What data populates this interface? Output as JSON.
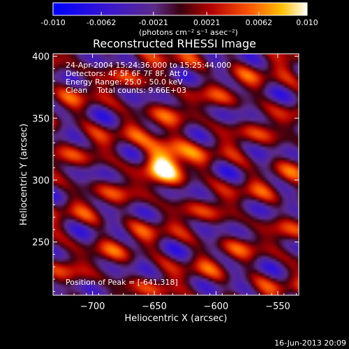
{
  "colorbar": {
    "ticks": [
      -0.01,
      -0.0062,
      -0.0021,
      0.0021,
      0.0062,
      0.01
    ],
    "tick_labels": [
      "-0.010",
      "-0.0062",
      "-0.0021",
      "0.0021",
      "0.0062",
      "0.010"
    ],
    "units_label": "(photons cm⁻² s⁻¹ asec⁻²)",
    "range": [
      -0.01,
      0.01
    ]
  },
  "chart_data": {
    "type": "heatmap",
    "title": "Reconstructed RHESSI Image",
    "xlabel": "Heliocentric X (arcsec)",
    "ylabel": "Heliocentric Y (arcsec)",
    "xlim": [
      -732,
      -533
    ],
    "ylim": [
      207,
      402
    ],
    "xticks": [
      -700,
      -650,
      -600,
      -550
    ],
    "yticks": [
      250,
      300,
      350,
      400
    ],
    "xtick_labels": [
      "−700",
      "−650",
      "−600",
      "−550"
    ],
    "ytick_labels": [
      "250",
      "300",
      "350",
      "400"
    ],
    "peak": [
      -641,
      318
    ],
    "colormap": "rhessi-hot",
    "annotations": [
      "24-Apr-2004 15:24:36.000 to 15:25:44.000",
      "Detectors: 4F 5F 6F 7F 8F, Att 0",
      "Energy Range: 25.0 - 50.0 keV",
      "Clean    Total counts: 9.66E+03"
    ],
    "peak_label": "Position of Peak = [-641,318]"
  },
  "footer": {
    "date": "16-Jun-2013 20:09"
  }
}
